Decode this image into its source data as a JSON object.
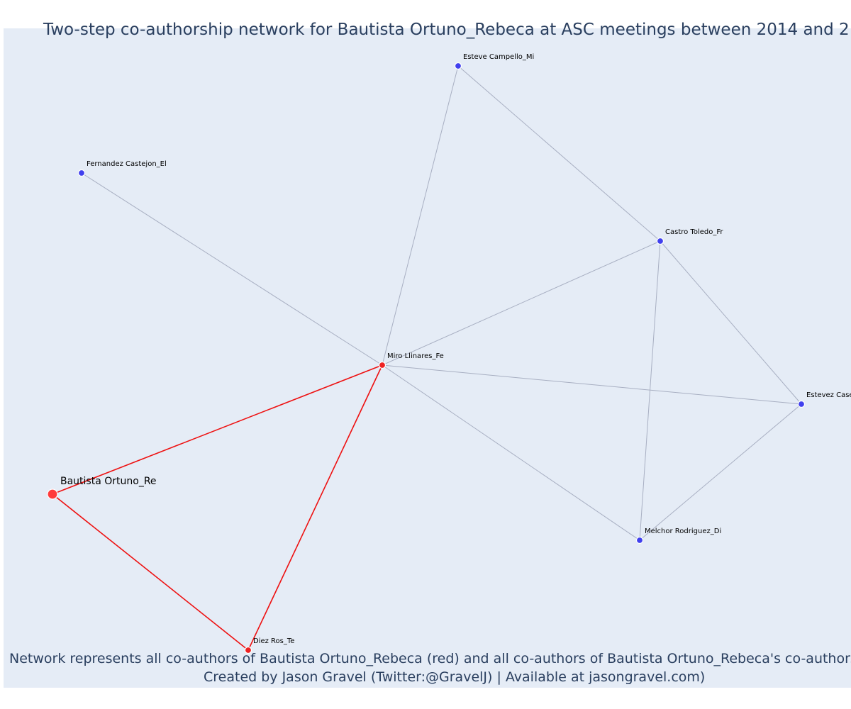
{
  "header": {
    "title": "Two-step co-authorship network for Bautista Ortuno_Rebeca at ASC meetings between 2014 and 2"
  },
  "footer": {
    "caption_line1": "Network represents all co-authors of Bautista Ortuno_Rebeca (red) and all co-authors of Bautista Ortuno_Rebeca's co-authors (b",
    "caption_line2": "Created by Jason Gravel (Twitter:@GravelJ) | Available at jasongravel.com)"
  },
  "colors": {
    "background": "#e5ecf6",
    "primary_author": "#ff3b3b",
    "first_step": "#ee2222",
    "second_step": "#4040ee",
    "primary_edge": "#ee1111",
    "secondary_edge": "#a8afc2",
    "text": "#2a3f5f"
  },
  "network": {
    "nodes": [
      {
        "id": "bautista",
        "label": "Bautista Ortuno_Re",
        "group": "primary"
      },
      {
        "id": "miro",
        "label": "Miro Llinares_Fe",
        "group": "first"
      },
      {
        "id": "diez",
        "label": "Diez Ros_Te",
        "group": "first"
      },
      {
        "id": "esteve",
        "label": "Esteve Campello_Mi",
        "group": "second"
      },
      {
        "id": "fernandez",
        "label": "Fernandez Castejon_El",
        "group": "second"
      },
      {
        "id": "castro",
        "label": "Castro Toledo_Fr",
        "group": "second"
      },
      {
        "id": "estevez",
        "label": "Estevez Case",
        "group": "second"
      },
      {
        "id": "melchor",
        "label": "Melchor Rodriguez_Di",
        "group": "second"
      }
    ],
    "edges": [
      {
        "source": "bautista",
        "target": "miro",
        "type": "primary"
      },
      {
        "source": "bautista",
        "target": "diez",
        "type": "primary"
      },
      {
        "source": "miro",
        "target": "diez",
        "type": "primary"
      },
      {
        "source": "miro",
        "target": "esteve",
        "type": "secondary"
      },
      {
        "source": "miro",
        "target": "fernandez",
        "type": "secondary"
      },
      {
        "source": "miro",
        "target": "castro",
        "type": "secondary"
      },
      {
        "source": "miro",
        "target": "estevez",
        "type": "secondary"
      },
      {
        "source": "miro",
        "target": "melchor",
        "type": "secondary"
      },
      {
        "source": "esteve",
        "target": "castro",
        "type": "secondary"
      },
      {
        "source": "castro",
        "target": "estevez",
        "type": "secondary"
      },
      {
        "source": "castro",
        "target": "melchor",
        "type": "secondary"
      },
      {
        "source": "estevez",
        "target": "melchor",
        "type": "secondary"
      }
    ]
  }
}
